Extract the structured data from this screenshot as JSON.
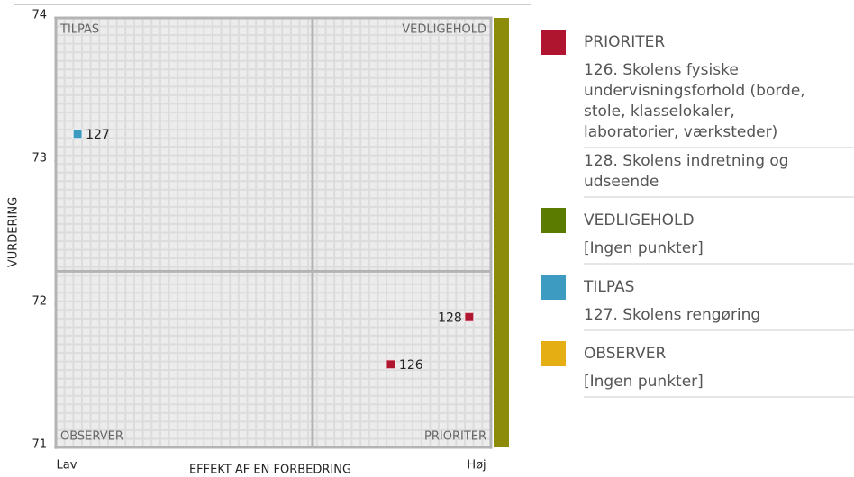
{
  "chart_data": {
    "type": "scatter",
    "x_label": "EFFEKT AF EN FORBEDRING",
    "y_label": "VURDERING",
    "xlim": [
      0,
      100
    ],
    "xticks": [
      {
        "value": 0,
        "label": "Lav"
      },
      {
        "value": 100,
        "label": "Høj"
      }
    ],
    "ylim": [
      71,
      74
    ],
    "yticks": [
      71,
      72,
      73,
      74
    ],
    "quadrant_split": {
      "x": 59,
      "y": 72.23
    },
    "quadrant_labels": {
      "top_left": "TILPAS",
      "top_right": "VEDLIGEHOLD",
      "bottom_left": "OBSERVER",
      "bottom_right": "PRIORITER"
    },
    "series": [
      {
        "name": "PRIORITER",
        "color": "#b01530",
        "x": [
          77,
          95
        ],
        "values": [
          71.58,
          71.91
        ],
        "labels": [
          "126",
          "128"
        ],
        "items": [
          "126. Skolens fysiske undervisningsforhold (borde, stole, klasselokaler, laboratorier, værksteder)",
          "128. Skolens indretning og udseende"
        ]
      },
      {
        "name": "VEDLIGEHOLD",
        "color": "#5b7a00",
        "x": [],
        "values": [],
        "labels": [],
        "items": [
          "[Ingen punkter]"
        ]
      },
      {
        "name": "TILPAS",
        "color": "#3d9bc1",
        "x": [
          5
        ],
        "values": [
          73.19
        ],
        "labels": [
          "127"
        ],
        "items": [
          "127. Skolens rengøring"
        ]
      },
      {
        "name": "OBSERVER",
        "color": "#e5ae12",
        "x": [],
        "values": [],
        "labels": [],
        "items": [
          "[Ingen punkter]"
        ]
      }
    ]
  }
}
